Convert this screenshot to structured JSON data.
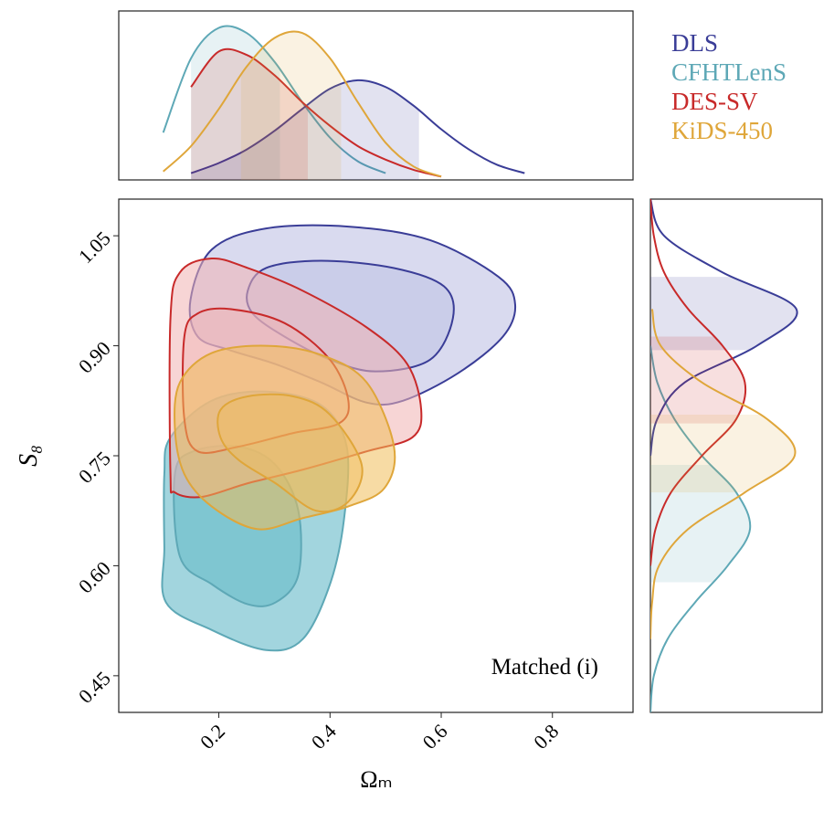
{
  "chart_data": {
    "type": "contour",
    "xlabel": "Ωₘ",
    "ylabel": "S₈",
    "annotation": "Matched (i)",
    "xlim": [
      0.02,
      0.945
    ],
    "ylim": [
      0.4,
      1.1
    ],
    "xticks": [
      0.2,
      0.4,
      0.6,
      0.8
    ],
    "yticks": [
      0.45,
      {
        "value": 0.6,
        "label": "0.60"
      },
      0.75,
      {
        "value": 0.9,
        "label": "0.90"
      },
      1.05
    ],
    "density_lim": [
      0,
      1
    ],
    "density_x_grid": [
      0.1,
      0.15,
      0.2,
      0.25,
      0.3,
      0.35,
      0.4,
      0.45,
      0.5,
      0.55,
      0.6,
      0.65,
      0.7,
      0.75,
      0.8
    ],
    "density_y_grid": [
      0.4,
      0.45,
      0.5,
      0.55,
      0.6,
      0.65,
      0.7,
      0.75,
      0.8,
      0.85,
      0.9,
      0.95,
      1.0,
      1.05,
      1.1
    ],
    "series": [
      {
        "name": "CFHTLenS",
        "color": "#5ea8b6",
        "fill": "#55b3c2",
        "contours": [
          {
            "x": [
              0.102,
              0.113,
              0.187,
              0.285,
              0.384,
              0.43,
              0.425,
              0.4,
              0.351,
              0.285,
              0.187,
              0.105,
              0.102
            ],
            "values": [
              0.725,
              0.775,
              0.825,
              0.8375,
              0.819,
              0.7625,
              0.6625,
              0.575,
              0.5,
              0.485,
              0.5125,
              0.55,
              0.625
            ]
          },
          {
            "x": [
              0.121,
              0.154,
              0.236,
              0.302,
              0.343,
              0.343,
              0.302,
              0.252,
              0.187,
              0.13
            ],
            "values": [
              0.725,
              0.756,
              0.7625,
              0.7375,
              0.675,
              0.5875,
              0.55,
              0.5475,
              0.575,
              0.6125
            ]
          }
        ],
        "x_density": [
          0.28,
          0.72,
          0.9,
          0.87,
          0.7,
          0.46,
          0.25,
          0.11,
          0.04,
          null,
          null,
          null,
          null,
          null,
          null
        ],
        "x_interval": [
          0.15,
          0.31
        ],
        "y_density": [
          0.0,
          0.02,
          0.1,
          0.26,
          0.45,
          0.58,
          0.5,
          0.3,
          0.14,
          0.04,
          0.0,
          null,
          null,
          null,
          null
        ],
        "y_interval": [
          0.5775,
          0.7375
        ]
      },
      {
        "name": "DLS",
        "color": "#3a3d97",
        "fill": "#b9bce2",
        "contours": [
          {
            "x": [
              0.149,
              0.187,
              0.285,
              0.433,
              0.58,
              0.703,
              0.733,
              0.711,
              0.63,
              0.531,
              0.466,
              0.384,
              0.302,
              0.22,
              0.162
            ],
            "values": [
              0.9625,
              1.031,
              1.06,
              1.0625,
              1.044,
              0.994,
              0.956,
              0.9125,
              0.8625,
              0.825,
              0.8225,
              0.85,
              0.875,
              0.894,
              0.9125
            ]
          },
          {
            "x": [
              0.252,
              0.285,
              0.384,
              0.515,
              0.605,
              0.621,
              0.58,
              0.482,
              0.4,
              0.318,
              0.261
            ],
            "values": [
              0.975,
              1.006,
              1.016,
              1.006,
              0.981,
              0.9375,
              0.881,
              0.865,
              0.881,
              0.9125,
              0.944
            ]
          }
        ],
        "x_density": [
          null,
          0.04,
          0.1,
          0.18,
          0.29,
          0.42,
          0.54,
          0.59,
          0.55,
          0.44,
          0.3,
          0.18,
          0.09,
          0.04,
          null
        ],
        "x_interval": [
          0.15,
          0.56
        ],
        "y_density": [
          null,
          null,
          null,
          null,
          null,
          null,
          null,
          0.0,
          0.04,
          0.2,
          0.62,
          0.85,
          0.42,
          0.08,
          0.0
        ],
        "y_interval": [
          0.894,
          0.994
        ]
      },
      {
        "name": "DES-SV",
        "color": "#c82a2a",
        "fill": "#f0b3b3",
        "contours": [
          {
            "x": [
              0.113,
              0.13,
              0.187,
              0.252,
              0.351,
              0.466,
              0.539,
              0.564,
              0.548,
              0.466,
              0.351,
              0.252,
              0.17,
              0.121,
              0.113
            ],
            "values": [
              0.9375,
              1.0,
              1.019,
              1.006,
              0.975,
              0.925,
              0.875,
              0.8125,
              0.775,
              0.756,
              0.731,
              0.7125,
              0.694,
              0.7,
              0.725
            ]
          },
          {
            "x": [
              0.138,
              0.162,
              0.22,
              0.318,
              0.4,
              0.433,
              0.416,
              0.334,
              0.236,
              0.162,
              0.138
            ],
            "values": [
              0.9125,
              0.944,
              0.95,
              0.931,
              0.881,
              0.825,
              0.794,
              0.781,
              0.7625,
              0.756,
              0.8
            ]
          }
        ],
        "x_density": [
          null,
          0.55,
          0.76,
          0.74,
          0.62,
          0.46,
          0.32,
          0.2,
          0.12,
          0.06,
          0.02,
          null,
          null,
          null,
          null
        ],
        "x_interval": [
          0.15,
          0.36
        ],
        "y_density": [
          null,
          null,
          null,
          null,
          0.0,
          0.03,
          0.12,
          0.3,
          0.5,
          0.55,
          0.42,
          0.22,
          0.08,
          0.02,
          0.0
        ],
        "y_interval": [
          0.794,
          0.9125
        ]
      },
      {
        "name": "KiDS-450",
        "color": "#dfa63a",
        "fill": "#f0bd5a",
        "contours": [
          {
            "x": [
              0.13,
              0.187,
              0.285,
              0.384,
              0.466,
              0.515,
              0.498,
              0.433,
              0.351,
              0.269,
              0.187,
              0.138,
              0.121
            ],
            "values": [
              0.85,
              0.89,
              0.9,
              0.8875,
              0.85,
              0.7625,
              0.706,
              0.681,
              0.665,
              0.65,
              0.681,
              0.725,
              0.7875
            ]
          },
          {
            "x": [
              0.203,
              0.252,
              0.334,
              0.4,
              0.457,
              0.433,
              0.375,
              0.302,
              0.236,
              0.203
            ],
            "values": [
              0.8125,
              0.831,
              0.831,
              0.806,
              0.7375,
              0.6875,
              0.675,
              0.7125,
              0.744,
              0.775
            ]
          }
        ],
        "x_density": [
          0.05,
          0.2,
          0.42,
          0.67,
          0.84,
          0.87,
          0.72,
          0.46,
          0.22,
          0.08,
          0.02,
          null,
          null,
          null,
          null
        ],
        "x_interval": [
          0.24,
          0.42
        ],
        "y_density": [
          null,
          null,
          0.0,
          0.01,
          0.05,
          0.22,
          0.55,
          0.84,
          0.68,
          0.3,
          0.06,
          0.01,
          null,
          null,
          null
        ],
        "y_interval": [
          0.7,
          0.806
        ]
      }
    ],
    "legend_order": [
      1,
      0,
      2,
      3
    ]
  }
}
